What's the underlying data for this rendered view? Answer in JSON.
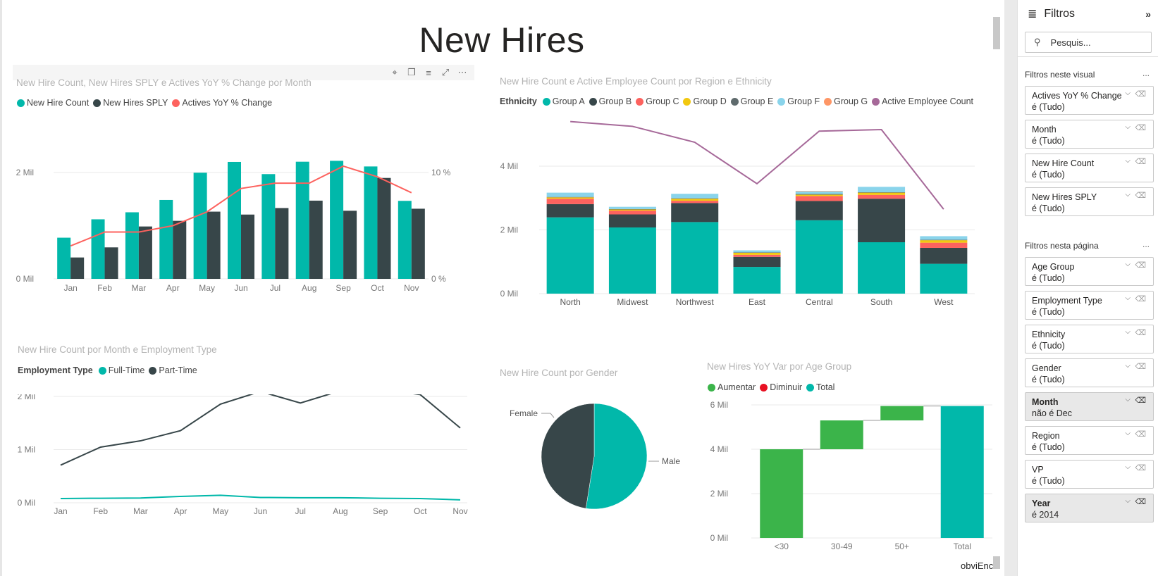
{
  "report": {
    "title": "New Hires",
    "footer_text": "obviEnc",
    "visual_header_icons": [
      "pin-icon",
      "copy-icon",
      "filter-icon",
      "focus-mode-icon",
      "more-options-icon"
    ]
  },
  "colors": {
    "teal": "#01B8AA",
    "dark": "#374649",
    "red": "#FD625E",
    "yellow": "#F2C80F",
    "gray": "#5F6B6D",
    "lightblue": "#8AD4EB",
    "orange": "#FE9666",
    "purple": "#A66999",
    "green": "#3BB44A",
    "decrease_red": "#E81123"
  },
  "chart_data": [
    {
      "id": "monthly",
      "type": "bar",
      "title": "New Hire Count, New Hires SPLY e Actives YoY % Change por Month",
      "legend": [
        "New Hire Count",
        "New Hires SPLY",
        "Actives YoY % Change"
      ],
      "categories": [
        "Jan",
        "Feb",
        "Mar",
        "Apr",
        "May",
        "Jun",
        "Jul",
        "Aug",
        "Sep",
        "Oct",
        "Nov"
      ],
      "series": [
        {
          "name": "New Hire Count",
          "kind": "bar",
          "values": [
            774,
            1120,
            1252,
            1484,
            1996,
            2199,
            1970,
            2203,
            2220,
            2114,
            1467
          ]
        },
        {
          "name": "New Hires SPLY",
          "kind": "bar",
          "values": [
            402,
            592,
            985,
            1091,
            1264,
            1209,
            1332,
            1471,
            1281,
            1898,
            1319
          ]
        },
        {
          "name": "Actives YoY % Change",
          "kind": "line",
          "axis": "secondary",
          "values": [
            3.1,
            4.4,
            4.4,
            5.0,
            6.3,
            8.5,
            9.0,
            9.0,
            10.6,
            9.6,
            8.1
          ]
        }
      ],
      "y_ticks": [
        "0 Mil",
        "2 Mil"
      ],
      "ylim": [
        0,
        2000
      ],
      "y2_ticks": [
        "0 %",
        "10 %"
      ],
      "y2lim": [
        0,
        10
      ],
      "legend_position": "top-left"
    },
    {
      "id": "region",
      "type": "bar",
      "stacked": true,
      "title": "New Hire Count e Active Employee Count por Region e Ethnicity",
      "legend_title": "Ethnicity",
      "legend": [
        "Group A",
        "Group B",
        "Group C",
        "Group D",
        "Group E",
        "Group F",
        "Group G",
        "Active Employee Count"
      ],
      "categories": [
        "North",
        "Midwest",
        "Northwest",
        "East",
        "Central",
        "South",
        "West"
      ],
      "series": [
        {
          "name": "Group A",
          "values": [
            2394,
            2077,
            2246,
            838,
            2303,
            1613,
            937
          ]
        },
        {
          "name": "Group B",
          "values": [
            416,
            409,
            599,
            317,
            605,
            1366,
            500
          ]
        },
        {
          "name": "Group C",
          "values": [
            169,
            120,
            70,
            63,
            155,
            120,
            162
          ]
        },
        {
          "name": "Group D",
          "values": [
            42,
            35,
            64,
            64,
            43,
            70,
            77
          ]
        },
        {
          "name": "Group E",
          "values": [
            14,
            14,
            14,
            14,
            21,
            14,
            14
          ]
        },
        {
          "name": "Group F",
          "values": [
            134,
            70,
            141,
            63,
            84,
            169,
            113
          ]
        },
        {
          "name": "Group G",
          "values": [
            0,
            0,
            0,
            0,
            14,
            0,
            0
          ]
        },
        {
          "name": "Active Employee Count",
          "kind": "line",
          "values": [
            5400,
            5250,
            4750,
            3450,
            5100,
            5150,
            2650
          ]
        }
      ],
      "y_ticks": [
        "0 Mil",
        "2 Mil",
        "4 Mil"
      ],
      "ylim": [
        0,
        4000
      ],
      "legend_position": "top-left"
    },
    {
      "id": "employment",
      "type": "line",
      "title": "New Hire Count por Month e Employment Type",
      "legend_title": "Employment Type",
      "legend": [
        "Full-Time",
        "Part-Time"
      ],
      "categories": [
        "Jan",
        "Feb",
        "Mar",
        "Apr",
        "May",
        "Jun",
        "Jul",
        "Aug",
        "Sep",
        "Oct",
        "Nov"
      ],
      "series": [
        {
          "name": "Full-Time",
          "values": [
            80,
            85,
            90,
            120,
            140,
            100,
            95,
            95,
            85,
            80,
            55
          ]
        },
        {
          "name": "Part-Time",
          "values": [
            708,
            1047,
            1165,
            1356,
            1856,
            2093,
            1877,
            2106,
            2140,
            2034,
            1407
          ]
        }
      ],
      "y_ticks": [
        "0 Mil",
        "1 Mil",
        "2 Mil"
      ],
      "ylim": [
        0,
        2000
      ],
      "legend_position": "top-left"
    },
    {
      "id": "gender",
      "type": "pie",
      "title": "New Hire Count por Gender",
      "labels": [
        "Male",
        "Female"
      ],
      "values": [
        52.5,
        47.5
      ]
    },
    {
      "id": "agegroup",
      "type": "bar",
      "subtype": "waterfall",
      "title": "New Hires YoY Var por Age Group",
      "legend": [
        "Aumentar",
        "Diminuir",
        "Total"
      ],
      "categories": [
        "<30",
        "30-49",
        "50+",
        "Total"
      ],
      "values": [
        4000,
        1300,
        650,
        5950
      ],
      "kinds": [
        "increase",
        "increase",
        "increase",
        "total"
      ],
      "y_ticks": [
        "0 Mil",
        "2 Mil",
        "4 Mil",
        "6 Mil"
      ],
      "ylim": [
        0,
        6000
      ],
      "legend_position": "top-left"
    }
  ],
  "filters": {
    "title": "Filtros",
    "search_placeholder": "Pesquis...",
    "visual_section": "Filtros neste visual",
    "page_section": "Filtros nesta página",
    "more": "...",
    "visual_filters": [
      {
        "name": "Actives YoY % Change",
        "value": "é (Tudo)",
        "active": false
      },
      {
        "name": "Month",
        "value": "é (Tudo)",
        "active": false
      },
      {
        "name": "New Hire Count",
        "value": "é (Tudo)",
        "active": false
      },
      {
        "name": "New Hires SPLY",
        "value": "é (Tudo)",
        "active": false
      }
    ],
    "page_filters": [
      {
        "name": "Age Group",
        "value": "é (Tudo)",
        "active": false
      },
      {
        "name": "Employment Type",
        "value": "é (Tudo)",
        "active": false
      },
      {
        "name": "Ethnicity",
        "value": "é (Tudo)",
        "active": false
      },
      {
        "name": "Gender",
        "value": "é (Tudo)",
        "active": false
      },
      {
        "name": "Month",
        "value": "não é Dec",
        "active": true
      },
      {
        "name": "Region",
        "value": "é (Tudo)",
        "active": false
      },
      {
        "name": "VP",
        "value": "é (Tudo)",
        "active": false
      },
      {
        "name": "Year",
        "value": "é 2014",
        "active": true
      }
    ]
  }
}
